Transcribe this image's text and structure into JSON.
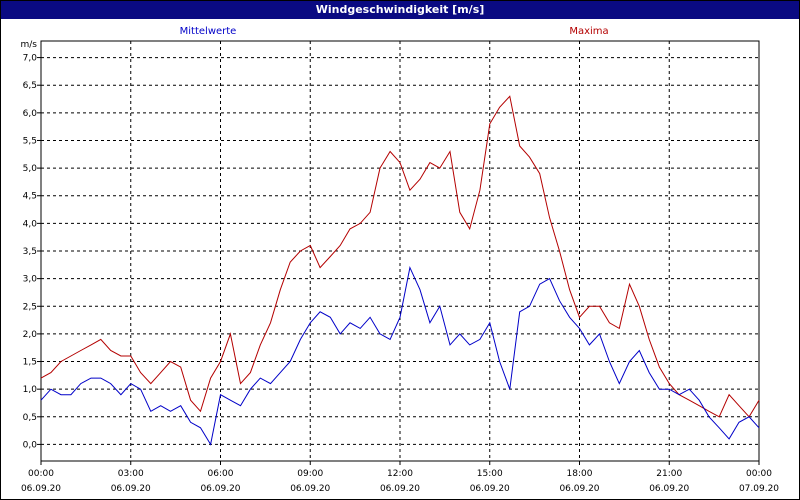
{
  "title": "Windgeschwindigkeit [m/s]",
  "chart_data": {
    "type": "line",
    "title": "Windgeschwindigkeit [m/s]",
    "ylabel": "m/s",
    "ylim": [
      -0.3,
      7.3
    ],
    "xlim": [
      0,
      24
    ],
    "grid": true,
    "legend_placement": "top",
    "colors": {
      "mittelwerte": "#0000c8",
      "maxima": "#b40000",
      "grid": "#000000",
      "title_bg": "#0a0a82"
    },
    "y_ticks": [
      "0,0",
      "0,5",
      "1,0",
      "1,5",
      "2,0",
      "2,5",
      "3,0",
      "3,5",
      "4,0",
      "4,5",
      "5,0",
      "5,5",
      "6,0",
      "6,5",
      "7,0"
    ],
    "x_ticks": [
      {
        "time": "00:00",
        "date": "06.09.20"
      },
      {
        "time": "03:00",
        "date": "06.09.20"
      },
      {
        "time": "06:00",
        "date": "06.09.20"
      },
      {
        "time": "09:00",
        "date": "06.09.20"
      },
      {
        "time": "12:00",
        "date": "06.09.20"
      },
      {
        "time": "15:00",
        "date": "06.09.20"
      },
      {
        "time": "18:00",
        "date": "06.09.20"
      },
      {
        "time": "21:00",
        "date": "06.09.20"
      },
      {
        "time": "00:00",
        "date": "07.09.20"
      }
    ],
    "x_hours": [
      0,
      0.33,
      0.67,
      1,
      1.33,
      1.67,
      2,
      2.33,
      2.67,
      3,
      3.33,
      3.67,
      4,
      4.33,
      4.67,
      5,
      5.33,
      5.67,
      6,
      6.33,
      6.67,
      7,
      7.33,
      7.67,
      8,
      8.33,
      8.67,
      9,
      9.33,
      9.67,
      10,
      10.33,
      10.67,
      11,
      11.33,
      11.67,
      12,
      12.33,
      12.67,
      13,
      13.33,
      13.67,
      14,
      14.33,
      14.67,
      15,
      15.33,
      15.67,
      16,
      16.33,
      16.67,
      17,
      17.33,
      17.67,
      18,
      18.33,
      18.67,
      19,
      19.33,
      19.67,
      20,
      20.33,
      20.67,
      21,
      21.33,
      21.67,
      22,
      22.33,
      22.67,
      23,
      23.33,
      23.67,
      24
    ],
    "series": [
      {
        "name": "Mittelwerte",
        "values": [
          0.8,
          1.0,
          0.9,
          0.9,
          1.1,
          1.2,
          1.2,
          1.1,
          0.9,
          1.1,
          1.0,
          0.6,
          0.7,
          0.6,
          0.7,
          0.4,
          0.3,
          0.0,
          0.9,
          0.8,
          0.7,
          1.0,
          1.2,
          1.1,
          1.3,
          1.5,
          1.9,
          2.2,
          2.4,
          2.3,
          2.0,
          2.2,
          2.1,
          2.3,
          2.0,
          1.9,
          2.3,
          3.2,
          2.8,
          2.2,
          2.5,
          1.8,
          2.0,
          1.8,
          1.9,
          2.2,
          1.5,
          1.0,
          2.4,
          2.5,
          2.9,
          3.0,
          2.6,
          2.3,
          2.1,
          1.8,
          2.0,
          1.5,
          1.1,
          1.5,
          1.7,
          1.3,
          1.0,
          1.0,
          0.9,
          1.0,
          0.8,
          0.5,
          0.3,
          0.1,
          0.4,
          0.5,
          0.3
        ]
      },
      {
        "name": "Maxima",
        "values": [
          1.2,
          1.3,
          1.5,
          1.6,
          1.7,
          1.8,
          1.9,
          1.7,
          1.6,
          1.6,
          1.3,
          1.1,
          1.3,
          1.5,
          1.4,
          0.8,
          0.6,
          1.2,
          1.5,
          2.0,
          1.1,
          1.3,
          1.8,
          2.2,
          2.8,
          3.3,
          3.5,
          3.6,
          3.2,
          3.4,
          3.6,
          3.9,
          4.0,
          4.2,
          5.0,
          5.3,
          5.1,
          4.6,
          4.8,
          5.1,
          5.0,
          5.3,
          4.2,
          3.9,
          4.6,
          5.8,
          6.1,
          6.3,
          5.4,
          5.2,
          4.9,
          4.1,
          3.5,
          2.8,
          2.3,
          2.5,
          2.5,
          2.2,
          2.1,
          2.9,
          2.5,
          1.9,
          1.4,
          1.1,
          0.9,
          0.8,
          0.7,
          0.6,
          0.5,
          0.9,
          0.7,
          0.5,
          0.8
        ]
      }
    ]
  }
}
